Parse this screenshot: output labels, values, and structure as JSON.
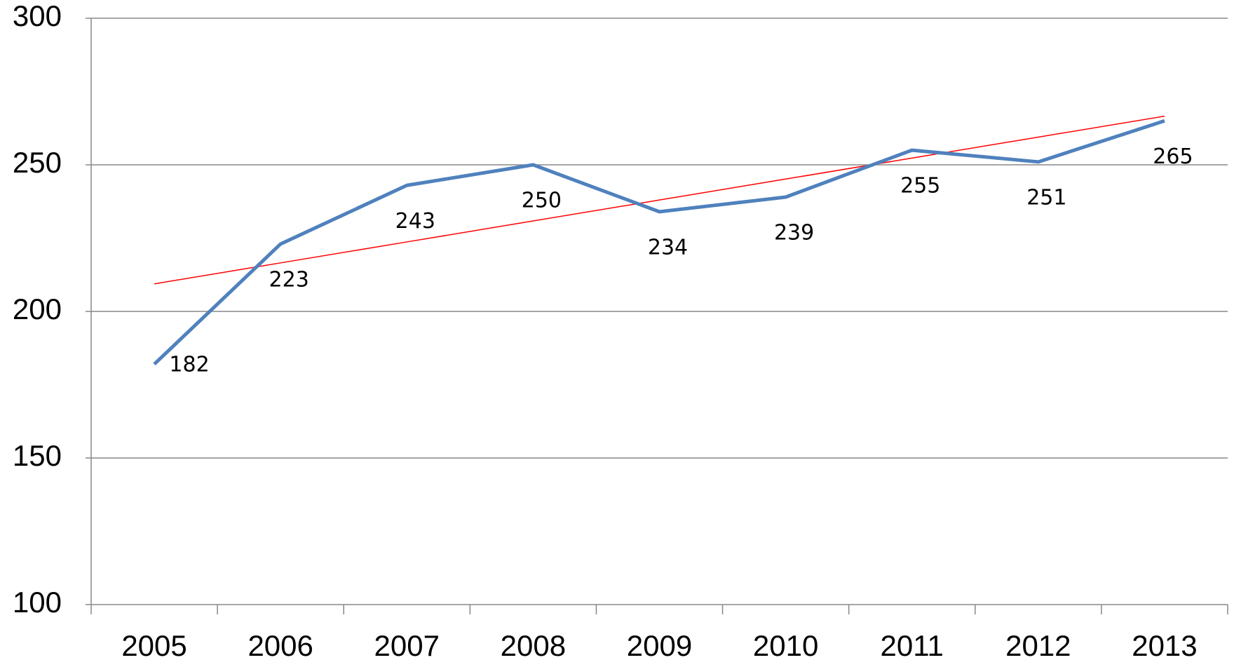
{
  "chart_data": {
    "type": "line",
    "categories": [
      "2005",
      "2006",
      "2007",
      "2008",
      "2009",
      "2010",
      "2011",
      "2012",
      "2013"
    ],
    "series": [
      {
        "color": "#4f81bd",
        "values": [
          182,
          223,
          243,
          250,
          234,
          239,
          255,
          251,
          265
        ]
      }
    ],
    "trendline": {
      "color": "#ff0000",
      "values": [
        209.4,
        216.55,
        223.7,
        230.85,
        238,
        245.15,
        252.3,
        259.45,
        266.6
      ]
    },
    "ylim": [
      100,
      300
    ],
    "yticks": [
      100,
      150,
      200,
      250,
      300
    ],
    "grid": true
  }
}
